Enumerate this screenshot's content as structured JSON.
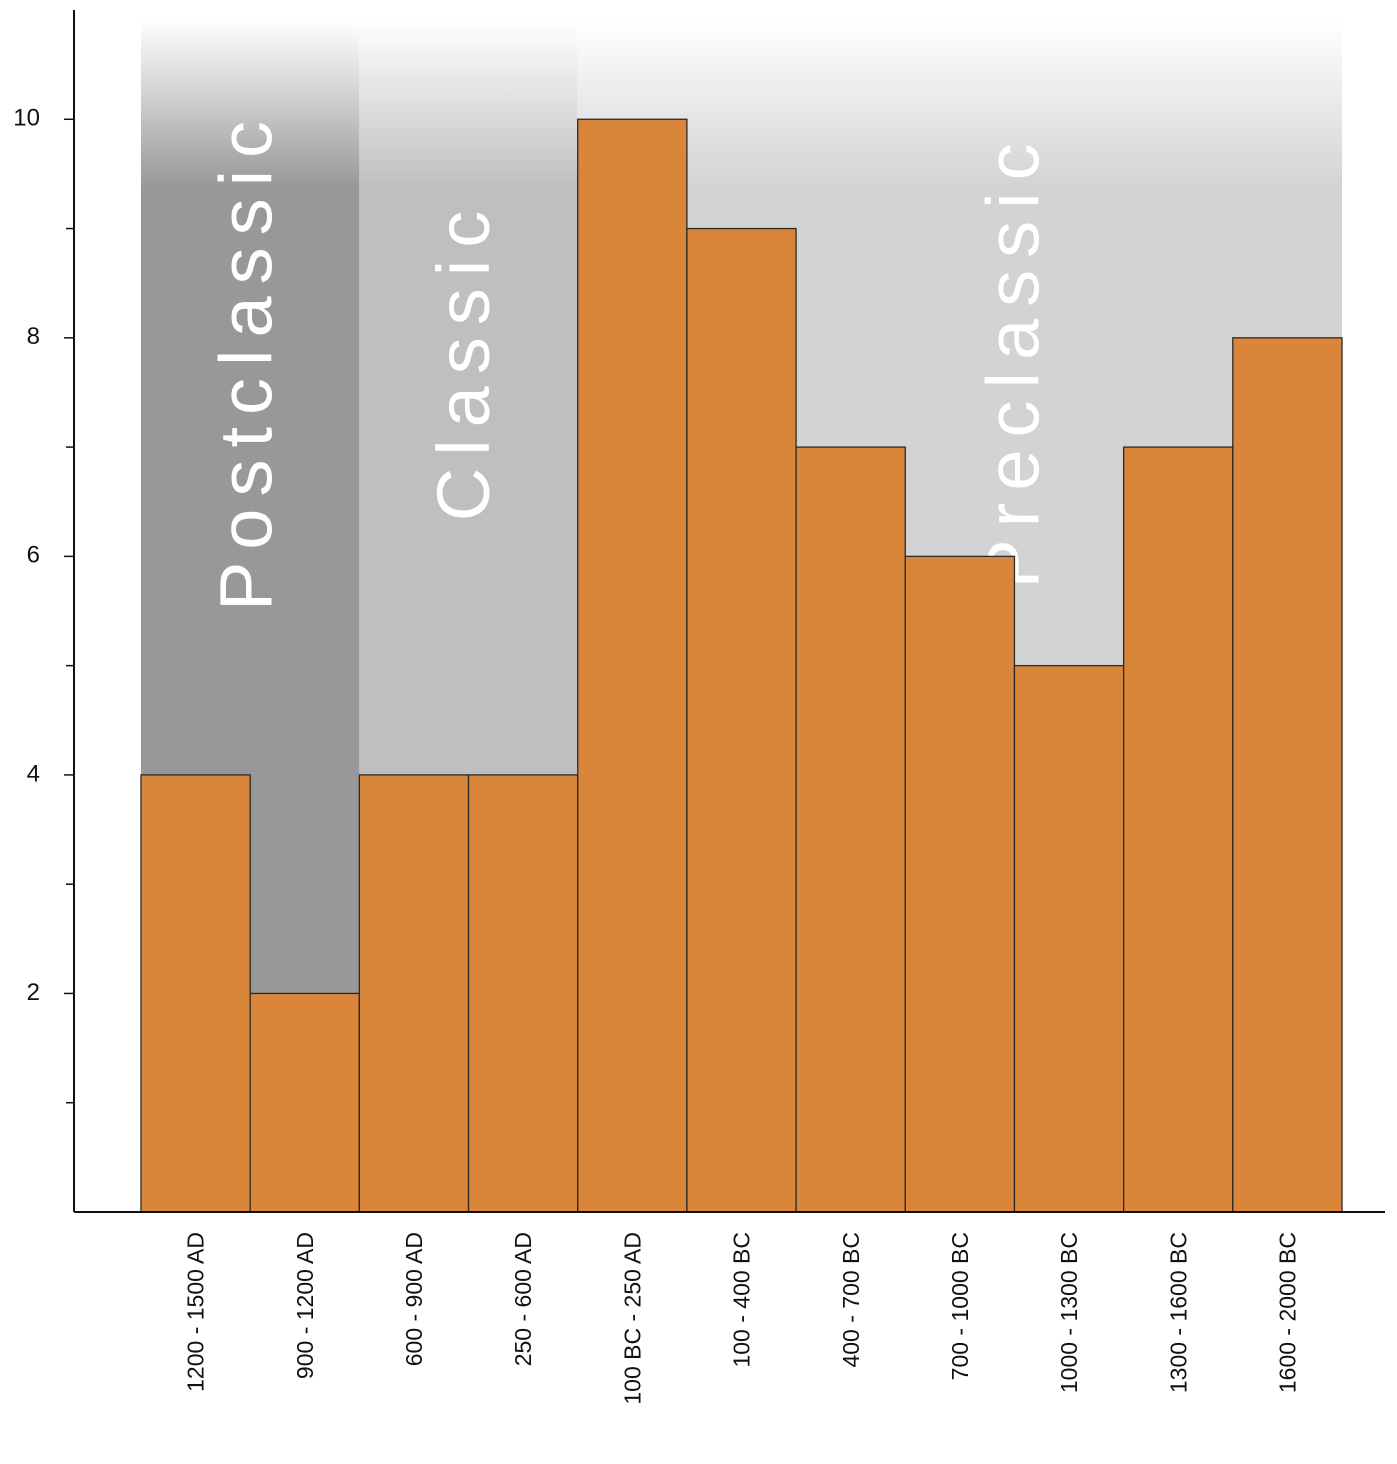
{
  "chart_data": {
    "type": "bar",
    "categories": [
      "1200 - 1500 AD",
      "900 - 1200 AD",
      "600 - 900 AD",
      "250 - 600 AD",
      "100 BC - 250 AD",
      "100 - 400 BC",
      "400 - 700 BC",
      "700 - 1000 BC",
      "1000 - 1300 BC",
      "1300 - 1600 BC",
      "1600 - 2000 BC"
    ],
    "values": [
      4,
      2,
      4,
      4,
      10,
      9,
      7,
      6,
      5,
      7,
      8
    ],
    "color": "#d9863b",
    "ylim": [
      0,
      11
    ],
    "yticks": [
      2,
      4,
      6,
      8,
      10
    ],
    "yminorticks": [
      1,
      3,
      5,
      7,
      9
    ],
    "periods": [
      {
        "label": "Postclassic",
        "color": "#97989a",
        "categories": [
          "1200 - 1500 AD",
          "900 - 1200 AD"
        ]
      },
      {
        "label": "Classic",
        "color": "#bebfc1",
        "categories": [
          "600 - 900 AD",
          "250 - 600 AD"
        ]
      },
      {
        "label": "Preclassic",
        "color": "#d2d3d5",
        "categories": [
          "100 BC - 250 AD",
          "100 - 400 BC",
          "400 - 700 BC",
          "700 - 1000 BC",
          "1000 - 1300 BC",
          "1300 - 1600 BC",
          "1600 - 2000 BC"
        ]
      }
    ]
  }
}
